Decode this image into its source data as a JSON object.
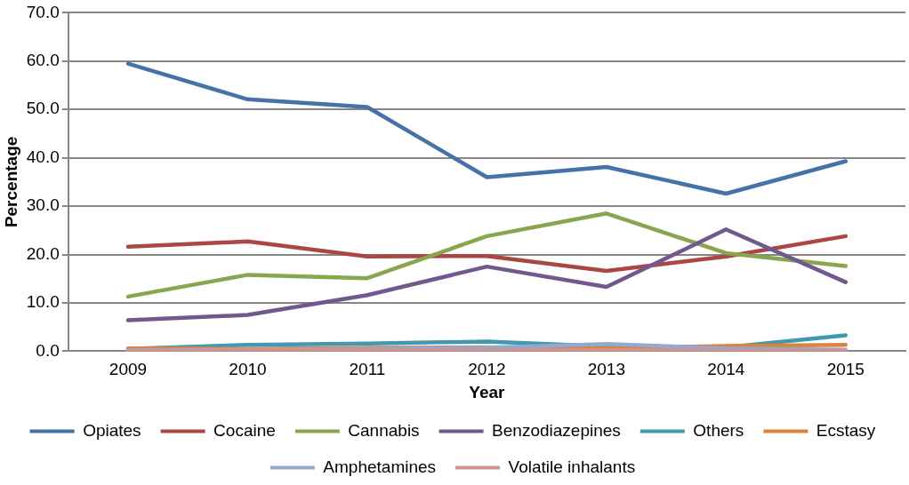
{
  "chart_data": {
    "type": "line",
    "xlabel": "Year",
    "ylabel": "Percentage",
    "categories": [
      "2009",
      "2010",
      "2011",
      "2012",
      "2013",
      "2014",
      "2015"
    ],
    "series": [
      {
        "name": "Opiates",
        "color": "#4572a7",
        "values": [
          59.5,
          52.1,
          50.5,
          36.0,
          38.1,
          32.6,
          39.3
        ]
      },
      {
        "name": "Cocaine",
        "color": "#aa4643",
        "values": [
          21.6,
          22.7,
          19.6,
          19.7,
          16.6,
          19.6,
          23.8
        ]
      },
      {
        "name": "Cannabis",
        "color": "#89a54e",
        "values": [
          11.3,
          15.8,
          15.1,
          23.8,
          28.5,
          20.3,
          17.6
        ]
      },
      {
        "name": "Benzodiazepines",
        "color": "#71588f",
        "values": [
          6.4,
          7.5,
          11.6,
          17.5,
          13.3,
          25.2,
          14.3
        ]
      },
      {
        "name": "Others",
        "color": "#4198af",
        "values": [
          0.5,
          1.3,
          1.6,
          2.0,
          1.0,
          0.8,
          3.3
        ]
      },
      {
        "name": "Ecstasy",
        "color": "#db843d",
        "values": [
          0.6,
          0.5,
          0.7,
          0.8,
          0.6,
          1.1,
          1.3
        ]
      },
      {
        "name": "Amphetamines",
        "color": "#93a9cf",
        "values": [
          0.2,
          0.3,
          0.5,
          0.7,
          1.5,
          0.6,
          0.3
        ]
      },
      {
        "name": "Volatile inhalants",
        "color": "#d19392",
        "values": [
          0.1,
          0.2,
          0.2,
          0.1,
          0.2,
          0.1,
          0.1
        ]
      }
    ],
    "ylim": [
      0,
      70
    ],
    "yticks": [
      {
        "value": 0,
        "label": "0.0"
      },
      {
        "value": 10,
        "label": "10.0"
      },
      {
        "value": 20,
        "label": "20.0"
      },
      {
        "value": 30,
        "label": "30.0"
      },
      {
        "value": 40,
        "label": "40.0"
      },
      {
        "value": 50,
        "label": "50.0"
      },
      {
        "value": 60,
        "label": "60.0"
      },
      {
        "value": 70,
        "label": "70.0"
      }
    ],
    "grid": "y",
    "legend": "bottom",
    "marker": "none",
    "line_style": "solid"
  }
}
